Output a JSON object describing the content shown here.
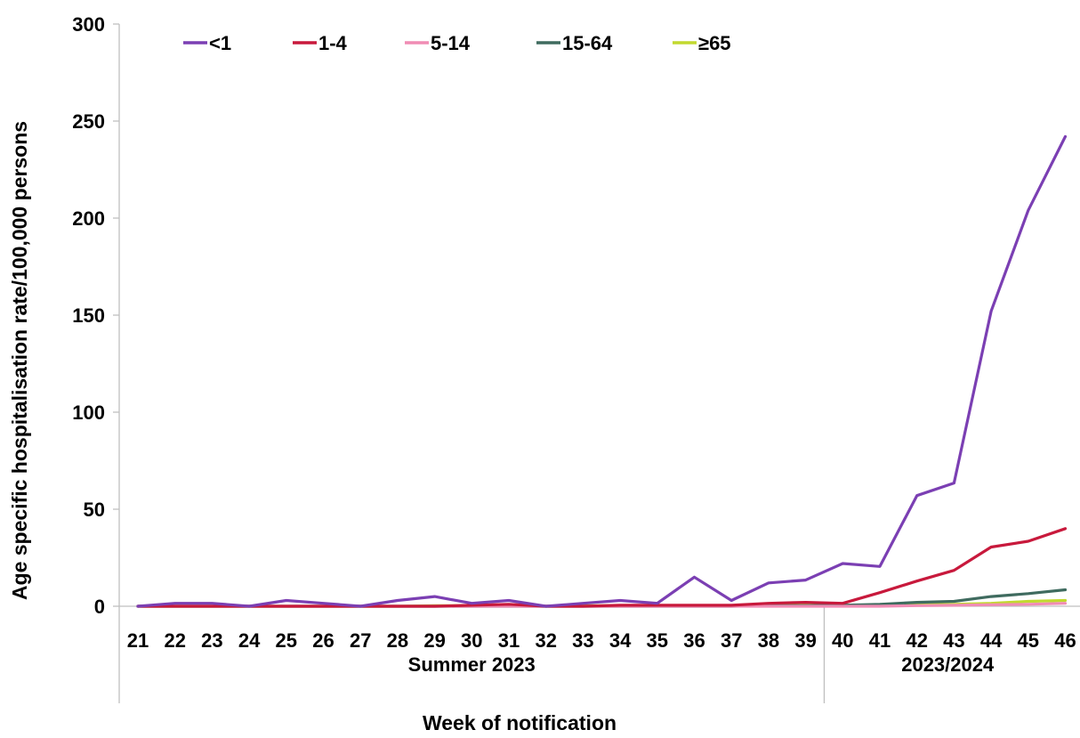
{
  "chart_data": {
    "type": "line",
    "title": "",
    "xlabel": "Week of notification",
    "ylabel": "Age specific hospitalisation rate/100,000 persons",
    "ylim": [
      0,
      300
    ],
    "yticks": [
      0,
      50,
      100,
      150,
      200,
      250,
      300
    ],
    "grid": false,
    "legend_position": "top",
    "categories": [
      "21",
      "22",
      "23",
      "24",
      "25",
      "26",
      "27",
      "28",
      "29",
      "30",
      "31",
      "32",
      "33",
      "34",
      "35",
      "36",
      "37",
      "38",
      "39",
      "40",
      "41",
      "42",
      "43",
      "44",
      "45",
      "46"
    ],
    "groups": [
      {
        "label": "Summer 2023",
        "start": 0,
        "end": 18
      },
      {
        "label": "2023/2024",
        "start": 19,
        "end": 25
      }
    ],
    "series": [
      {
        "name": "<1",
        "color": "#7B3FB3",
        "values": [
          0,
          1.5,
          1.5,
          0,
          3,
          1.5,
          0,
          3,
          5,
          1.5,
          3,
          0,
          1.5,
          3,
          1.5,
          15,
          3,
          12,
          13.5,
          22,
          20.5,
          57,
          63.5,
          152,
          204,
          242
        ]
      },
      {
        "name": "1-4",
        "color": "#C8193C",
        "values": [
          0,
          0,
          0,
          0,
          0,
          0,
          0,
          0,
          0,
          0.5,
          1,
          0,
          0,
          0.5,
          0.5,
          0.5,
          0.5,
          1.5,
          2,
          1.5,
          7,
          13,
          18.5,
          30.5,
          33.5,
          40
        ]
      },
      {
        "name": "5-14",
        "color": "#F08CB4",
        "values": [
          0,
          0,
          0,
          0,
          0,
          0,
          0,
          0,
          0,
          0,
          0,
          0,
          0,
          0,
          0,
          0,
          0,
          0,
          0,
          0,
          0,
          0.3,
          0.5,
          0.8,
          1,
          1.5
        ]
      },
      {
        "name": "15-64",
        "color": "#3F6B5F",
        "values": [
          0,
          0,
          0,
          0,
          0,
          0,
          0,
          0,
          0,
          0,
          0,
          0,
          0,
          0,
          0,
          0,
          0,
          0.3,
          0.3,
          0.5,
          1,
          2,
          2.5,
          5,
          6.5,
          8.5
        ]
      },
      {
        "name": "≥65",
        "color": "#C2D92F",
        "values": [
          0,
          0,
          0,
          0,
          0,
          0,
          0,
          0,
          0.3,
          0.3,
          0.3,
          0,
          0.3,
          0.3,
          0.3,
          0.3,
          0.3,
          0.5,
          0.5,
          0.5,
          0.5,
          0.8,
          1,
          1.5,
          2.5,
          3
        ]
      }
    ]
  }
}
